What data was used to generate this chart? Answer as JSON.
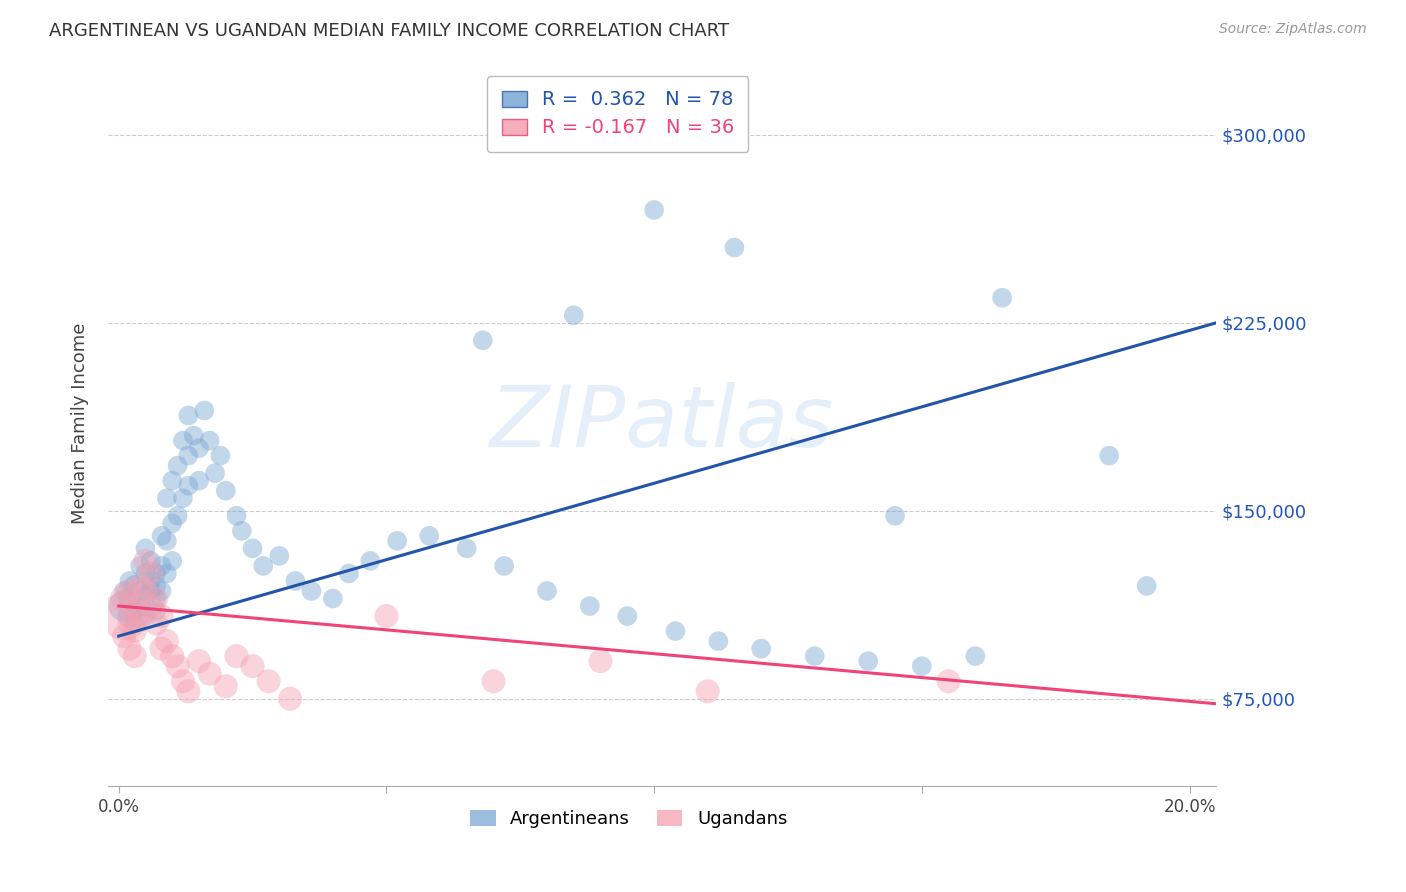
{
  "title": "ARGENTINEAN VS UGANDAN MEDIAN FAMILY INCOME CORRELATION CHART",
  "source": "Source: ZipAtlas.com",
  "ylabel_label": "Median Family Income",
  "x_ticks": [
    0.0,
    0.05,
    0.1,
    0.15,
    0.2
  ],
  "x_tick_labels": [
    "0.0%",
    "",
    "",
    "",
    "20.0%"
  ],
  "y_ticks": [
    75000,
    150000,
    225000,
    300000
  ],
  "y_tick_labels": [
    "$75,000",
    "$150,000",
    "$225,000",
    "$300,000"
  ],
  "xlim": [
    -0.002,
    0.205
  ],
  "ylim": [
    40000,
    330000
  ],
  "blue_R": 0.362,
  "blue_N": 78,
  "pink_R": -0.167,
  "pink_N": 36,
  "legend_label_blue": "Argentineans",
  "legend_label_pink": "Ugandans",
  "watermark": "ZIPatlas",
  "blue_color": "#7BA7D4",
  "pink_color": "#F4A0B0",
  "blue_line_color": "#2255AA",
  "pink_line_color": "#EE4477",
  "background_color": "#FFFFFF",
  "grid_color": "#CCCCCC",
  "blue_scatter_x": [
    0.001,
    0.001,
    0.002,
    0.002,
    0.002,
    0.003,
    0.003,
    0.003,
    0.004,
    0.004,
    0.004,
    0.005,
    0.005,
    0.005,
    0.005,
    0.006,
    0.006,
    0.006,
    0.007,
    0.007,
    0.007,
    0.007,
    0.008,
    0.008,
    0.008,
    0.009,
    0.009,
    0.009,
    0.01,
    0.01,
    0.01,
    0.011,
    0.011,
    0.012,
    0.012,
    0.013,
    0.013,
    0.013,
    0.014,
    0.015,
    0.015,
    0.016,
    0.017,
    0.018,
    0.019,
    0.02,
    0.022,
    0.023,
    0.025,
    0.027,
    0.03,
    0.033,
    0.036,
    0.04,
    0.043,
    0.047,
    0.052,
    0.058,
    0.065,
    0.072,
    0.08,
    0.088,
    0.095,
    0.104,
    0.112,
    0.12,
    0.13,
    0.14,
    0.15,
    0.16,
    0.068,
    0.085,
    0.1,
    0.115,
    0.145,
    0.165,
    0.185,
    0.192
  ],
  "blue_scatter_y": [
    112000,
    118000,
    108000,
    122000,
    115000,
    110000,
    120000,
    105000,
    118000,
    128000,
    112000,
    116000,
    125000,
    108000,
    135000,
    122000,
    118000,
    130000,
    115000,
    125000,
    110000,
    120000,
    140000,
    128000,
    118000,
    155000,
    138000,
    125000,
    145000,
    162000,
    130000,
    168000,
    148000,
    178000,
    155000,
    188000,
    172000,
    160000,
    180000,
    175000,
    162000,
    190000,
    178000,
    165000,
    172000,
    158000,
    148000,
    142000,
    135000,
    128000,
    132000,
    122000,
    118000,
    115000,
    125000,
    130000,
    138000,
    140000,
    135000,
    128000,
    118000,
    112000,
    108000,
    102000,
    98000,
    95000,
    92000,
    90000,
    88000,
    92000,
    218000,
    228000,
    270000,
    255000,
    148000,
    235000,
    172000,
    120000
  ],
  "blue_scatter_sizes": [
    500,
    200,
    300,
    200,
    250,
    200,
    250,
    200,
    200,
    200,
    200,
    200,
    200,
    200,
    200,
    200,
    200,
    200,
    200,
    200,
    200,
    200,
    200,
    200,
    200,
    200,
    200,
    200,
    200,
    200,
    200,
    200,
    200,
    200,
    200,
    200,
    200,
    200,
    200,
    200,
    200,
    200,
    200,
    200,
    200,
    200,
    200,
    200,
    200,
    200,
    200,
    200,
    200,
    200,
    200,
    200,
    200,
    200,
    200,
    200,
    200,
    200,
    200,
    200,
    200,
    200,
    200,
    200,
    200,
    200,
    200,
    200,
    200,
    200,
    200,
    200,
    200,
    200
  ],
  "pink_scatter_x": [
    0.001,
    0.001,
    0.001,
    0.002,
    0.002,
    0.002,
    0.003,
    0.003,
    0.003,
    0.004,
    0.004,
    0.005,
    0.005,
    0.006,
    0.006,
    0.007,
    0.007,
    0.008,
    0.008,
    0.009,
    0.01,
    0.011,
    0.012,
    0.013,
    0.015,
    0.017,
    0.02,
    0.022,
    0.025,
    0.028,
    0.032,
    0.05,
    0.07,
    0.09,
    0.11,
    0.155
  ],
  "pink_scatter_y": [
    108000,
    115000,
    100000,
    118000,
    105000,
    95000,
    110000,
    102000,
    92000,
    120000,
    108000,
    130000,
    118000,
    125000,
    112000,
    115000,
    105000,
    95000,
    108000,
    98000,
    92000,
    88000,
    82000,
    78000,
    90000,
    85000,
    80000,
    92000,
    88000,
    82000,
    75000,
    108000,
    82000,
    90000,
    78000,
    82000
  ],
  "pink_scatter_sizes": [
    1200,
    400,
    300,
    300,
    300,
    300,
    300,
    300,
    300,
    300,
    300,
    300,
    300,
    300,
    300,
    300,
    300,
    300,
    300,
    300,
    300,
    300,
    300,
    300,
    300,
    300,
    300,
    300,
    300,
    300,
    300,
    300,
    300,
    300,
    300,
    300
  ],
  "blue_trend_x": [
    0.0,
    0.205
  ],
  "blue_trend_y": [
    100000,
    225000
  ],
  "pink_trend_x": [
    0.0,
    0.205
  ],
  "pink_trend_y": [
    112000,
    73000
  ]
}
